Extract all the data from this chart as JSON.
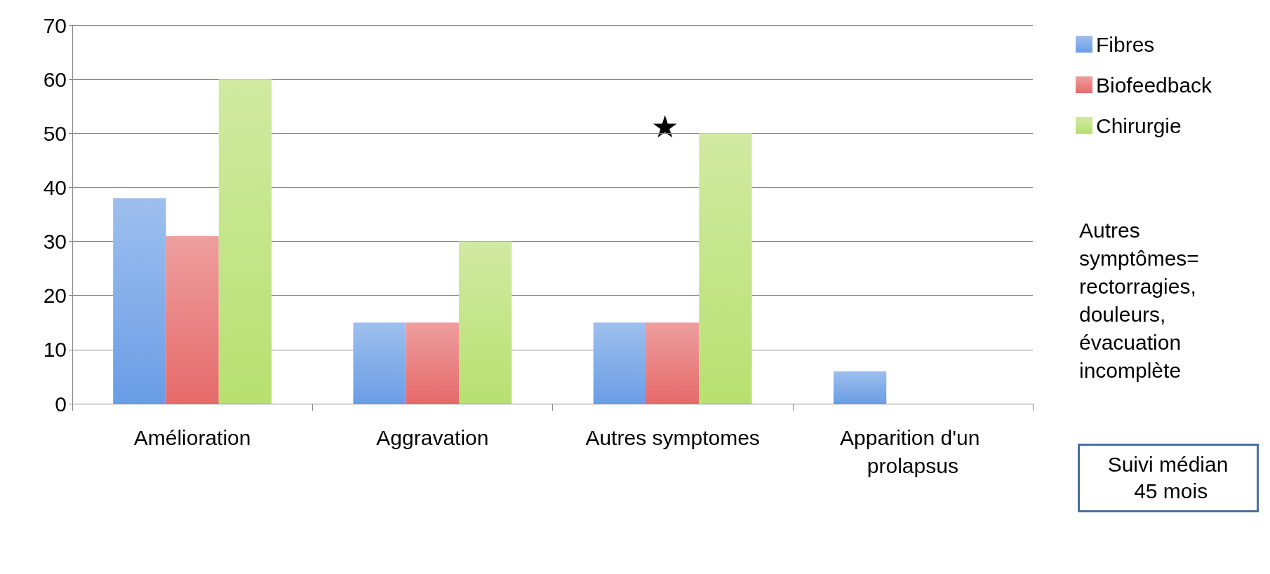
{
  "chart_data": {
    "type": "bar",
    "categories": [
      "Amélioration",
      "Aggravation",
      "Autres symptomes",
      "Apparition d'un prolapsus"
    ],
    "series": [
      {
        "name": "Fibres",
        "color": "#6a9de6",
        "values": [
          38,
          15,
          15,
          6
        ]
      },
      {
        "name": "Biofeedback",
        "color": "#e66a6a",
        "values": [
          31,
          15,
          15,
          0
        ]
      },
      {
        "name": "Chirurgie",
        "color": "#b8e070",
        "values": [
          60,
          30,
          50,
          0
        ]
      }
    ],
    "ylim": [
      0,
      70
    ],
    "yticks": [
      0,
      10,
      20,
      30,
      40,
      50,
      60,
      70
    ],
    "grid": "y",
    "legend": "right",
    "annotations": [
      "Autres symptômes= rectorragies, douleurs, évacuation incomplète",
      "Suivi médian 45 mois",
      "★"
    ]
  }
}
